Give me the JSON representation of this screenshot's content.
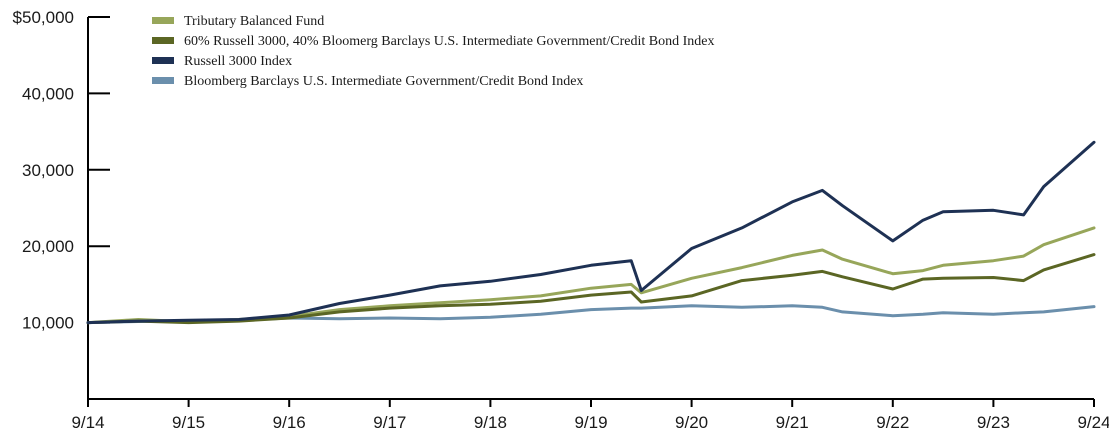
{
  "chart_data": {
    "type": "line",
    "title": "",
    "xlabel": "",
    "ylabel": "",
    "ylim": [
      0,
      50000
    ],
    "y_ticks": [
      {
        "value": 50000,
        "label": "$50,000"
      },
      {
        "value": 40000,
        "label": "40,000"
      },
      {
        "value": 30000,
        "label": "30,000"
      },
      {
        "value": 20000,
        "label": "20,000"
      },
      {
        "value": 10000,
        "label": "10,000"
      }
    ],
    "x_tick_labels": [
      "9/14",
      "9/15",
      "9/16",
      "9/17",
      "9/18",
      "9/19",
      "9/20",
      "9/21",
      "9/22",
      "9/23",
      "9/24"
    ],
    "x_range_years": [
      0,
      10
    ],
    "legend_placement": "top-left",
    "series": [
      {
        "name": "Tributary Balanced Fund",
        "color": "#97a65a",
        "points": [
          [
            0,
            10000
          ],
          [
            0.5,
            10400
          ],
          [
            1,
            10100
          ],
          [
            1.5,
            10400
          ],
          [
            2,
            10800
          ],
          [
            2.5,
            11700
          ],
          [
            3,
            12200
          ],
          [
            3.5,
            12600
          ],
          [
            4,
            13000
          ],
          [
            4.5,
            13500
          ],
          [
            5,
            14500
          ],
          [
            5.4,
            15000
          ],
          [
            5.5,
            13900
          ],
          [
            6,
            15800
          ],
          [
            6.5,
            17200
          ],
          [
            7,
            18800
          ],
          [
            7.3,
            19500
          ],
          [
            7.5,
            18300
          ],
          [
            8,
            16400
          ],
          [
            8.3,
            16800
          ],
          [
            8.5,
            17500
          ],
          [
            9,
            18100
          ],
          [
            9.3,
            18700
          ],
          [
            9.5,
            20200
          ],
          [
            10,
            22400
          ]
        ]
      },
      {
        "name": "60% Russell 3000, 40% Bloomerg Barclays U.S. Intermediate Government/Credit Bond Index",
        "color": "#5b6624",
        "points": [
          [
            0,
            10000
          ],
          [
            0.5,
            10200
          ],
          [
            1,
            10000
          ],
          [
            1.5,
            10200
          ],
          [
            2,
            10600
          ],
          [
            2.5,
            11400
          ],
          [
            3,
            11900
          ],
          [
            3.5,
            12200
          ],
          [
            4,
            12400
          ],
          [
            4.5,
            12800
          ],
          [
            5,
            13600
          ],
          [
            5.4,
            14000
          ],
          [
            5.5,
            12700
          ],
          [
            6,
            13500
          ],
          [
            6.5,
            15500
          ],
          [
            7,
            16200
          ],
          [
            7.3,
            16700
          ],
          [
            7.5,
            16000
          ],
          [
            8,
            14400
          ],
          [
            8.3,
            15700
          ],
          [
            8.5,
            15800
          ],
          [
            9,
            15900
          ],
          [
            9.3,
            15500
          ],
          [
            9.5,
            16900
          ],
          [
            10,
            18900
          ]
        ]
      },
      {
        "name": "Russell 3000 Index",
        "color": "#1e3154",
        "points": [
          [
            0,
            10000
          ],
          [
            0.5,
            10200
          ],
          [
            1,
            10300
          ],
          [
            1.5,
            10400
          ],
          [
            2,
            11000
          ],
          [
            2.5,
            12500
          ],
          [
            3,
            13600
          ],
          [
            3.5,
            14800
          ],
          [
            4,
            15400
          ],
          [
            4.5,
            16300
          ],
          [
            5,
            17500
          ],
          [
            5.4,
            18100
          ],
          [
            5.5,
            14200
          ],
          [
            6,
            19700
          ],
          [
            6.5,
            22400
          ],
          [
            7,
            25800
          ],
          [
            7.3,
            27300
          ],
          [
            7.5,
            25300
          ],
          [
            8,
            20700
          ],
          [
            8.3,
            23400
          ],
          [
            8.5,
            24500
          ],
          [
            9,
            24700
          ],
          [
            9.3,
            24100
          ],
          [
            9.5,
            27800
          ],
          [
            10,
            33600
          ]
        ]
      },
      {
        "name": "Bloomberg Barclays U.S. Intermediate Government/Credit Bond Index",
        "color": "#6b8fac",
        "points": [
          [
            0,
            10000
          ],
          [
            0.5,
            10150
          ],
          [
            1,
            10250
          ],
          [
            1.5,
            10300
          ],
          [
            2,
            10600
          ],
          [
            2.5,
            10500
          ],
          [
            3,
            10600
          ],
          [
            3.5,
            10500
          ],
          [
            4,
            10700
          ],
          [
            4.5,
            11100
          ],
          [
            5,
            11700
          ],
          [
            5.4,
            11900
          ],
          [
            5.5,
            11900
          ],
          [
            6,
            12200
          ],
          [
            6.5,
            12000
          ],
          [
            7,
            12200
          ],
          [
            7.3,
            12000
          ],
          [
            7.5,
            11400
          ],
          [
            8,
            10900
          ],
          [
            8.3,
            11100
          ],
          [
            8.5,
            11300
          ],
          [
            9,
            11100
          ],
          [
            9.3,
            11300
          ],
          [
            9.5,
            11400
          ],
          [
            10,
            12100
          ]
        ]
      }
    ]
  }
}
